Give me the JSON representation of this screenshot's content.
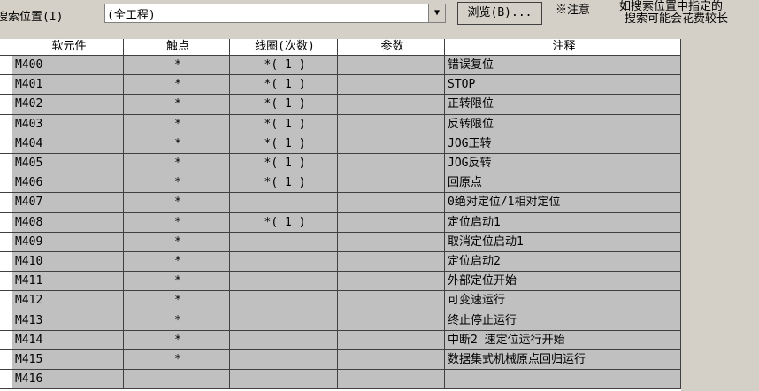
{
  "toolbar": {
    "search_label": "搜索位置(I)",
    "scope": "(全工程)",
    "browse_button": "浏览(B)...",
    "note_mark": "※注意",
    "note_lines": [
      "如搜索位置中指定的",
      "搜索可能会花费较长"
    ]
  },
  "table": {
    "columns": [
      "软元件",
      "触点",
      "线圈(次数)",
      "参数",
      "注释"
    ],
    "rows": [
      [
        "M400",
        "*",
        "*( 1 )",
        null,
        "错误复位"
      ],
      [
        "M401",
        "*",
        "*( 1 )",
        null,
        "STOP"
      ],
      [
        "M402",
        "*",
        "*( 1 )",
        null,
        "正转限位"
      ],
      [
        "M403",
        "*",
        "*( 1 )",
        null,
        "反转限位"
      ],
      [
        "M404",
        "*",
        "*( 1 )",
        null,
        "JOG正转"
      ],
      [
        "M405",
        "*",
        "*( 1 )",
        null,
        "JOG反转"
      ],
      [
        "M406",
        "*",
        "*( 1 )",
        null,
        "回原点"
      ],
      [
        "M407",
        "*",
        null,
        null,
        "0绝对定位/1相对定位"
      ],
      [
        "M408",
        "*",
        "*( 1 )",
        null,
        "定位启动1"
      ],
      [
        "M409",
        "*",
        null,
        null,
        "取消定位启动1"
      ],
      [
        "M410",
        "*",
        null,
        null,
        "定位启动2"
      ],
      [
        "M411",
        "*",
        null,
        null,
        "外部定位开始"
      ],
      [
        "M412",
        "*",
        null,
        null,
        "可变速运行"
      ],
      [
        "M413",
        "*",
        null,
        null,
        "终止停止运行"
      ],
      [
        "M414",
        "*",
        null,
        null,
        "中断2 速定位运行开始"
      ],
      [
        "M415",
        "*",
        null,
        null,
        "数据集式机械原点回归运行"
      ],
      [
        "M416",
        null,
        null,
        null,
        null
      ]
    ]
  }
}
